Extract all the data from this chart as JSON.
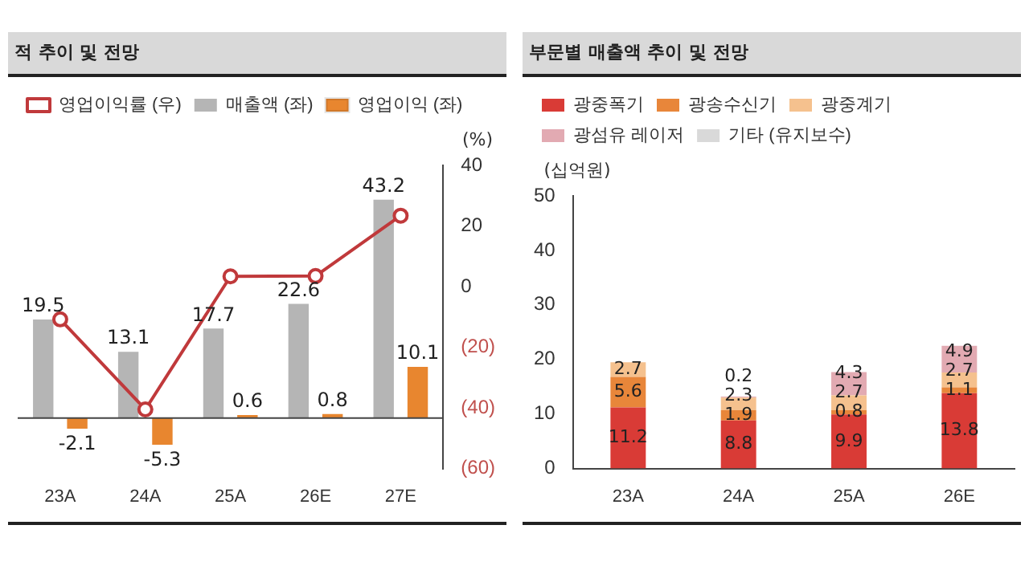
{
  "chart_data": [
    {
      "type": "bar",
      "title": "적 추이 및 전망",
      "categories": [
        "23A",
        "24A",
        "25A",
        "26E",
        "27E"
      ],
      "series": [
        {
          "name": "매출액 (좌)",
          "color": "#b5b5b5",
          "values": [
            19.5,
            13.1,
            17.7,
            22.6,
            43.2
          ],
          "value_labels": [
            "19.5",
            "13.1",
            "17.7",
            "22.6",
            "43.2"
          ]
        },
        {
          "name": "영업이익 (좌)",
          "color": "#e8862f",
          "values": [
            -2.1,
            -5.3,
            0.6,
            0.8,
            10.1
          ],
          "value_labels": [
            "-2.1",
            "-5.3",
            "0.6",
            "0.8",
            "10.1"
          ]
        },
        {
          "name": "영업이익률 (우)",
          "type": "line",
          "axis": "y2",
          "color": "#c0393b",
          "values": [
            -10.8,
            -40.5,
            3.4,
            3.5,
            23.4
          ]
        }
      ],
      "ylim": [
        -10,
        50
      ],
      "y2lim": [
        -60,
        40
      ],
      "y2ticks": [
        40,
        20,
        0,
        {
          "value": -20,
          "label": "(20)"
        },
        {
          "value": -40,
          "label": "(40)"
        },
        {
          "value": -60,
          "label": "(60)"
        }
      ],
      "y2label": "(%)",
      "legend": "top",
      "marker": "circle",
      "grid": false
    },
    {
      "type": "bar",
      "title": "부문별 매출액 추이 및 전망",
      "categories": [
        "23A",
        "24A",
        "25A",
        "26E"
      ],
      "stacked": true,
      "series": [
        {
          "name": "광중폭기",
          "color": "#d93b36",
          "values": [
            11.2,
            8.8,
            9.9,
            13.8
          ]
        },
        {
          "name": "광송수신기",
          "color": "#e8863a",
          "values": [
            5.6,
            1.9,
            0.8,
            1.1
          ]
        },
        {
          "name": "광중계기",
          "color": "#f5c18e",
          "values": [
            2.7,
            2.3,
            2.7,
            2.7
          ]
        },
        {
          "name": "광섬유 레이저",
          "color": "#e2aab2",
          "values": [
            null,
            0.2,
            4.3,
            4.9
          ]
        },
        {
          "name": "기타 (유지보수)",
          "color": "#d9d9d9",
          "values": [
            null,
            null,
            null,
            null
          ]
        }
      ],
      "ylim": [
        0,
        50
      ],
      "yticks": [
        0,
        10,
        20,
        30,
        40,
        50
      ],
      "ylabel": "(십억원)",
      "legend": "top",
      "data_labels": true,
      "grid": false
    }
  ]
}
